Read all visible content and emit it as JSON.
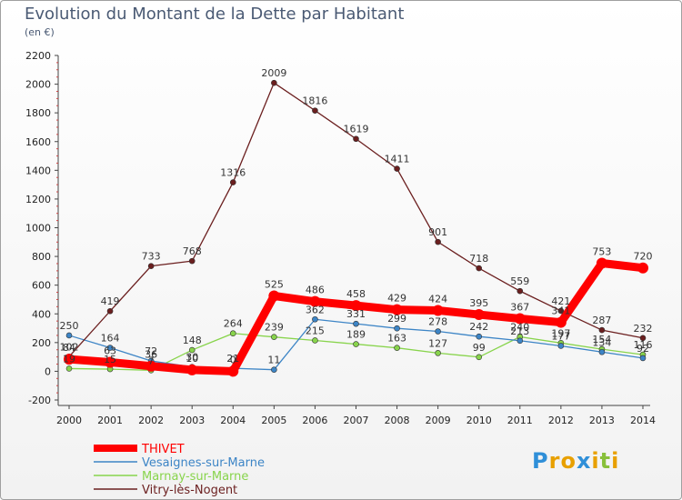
{
  "title": "Evolution du Montant de la Dette par Habitant",
  "subtitle": "(en €)",
  "logo": "Proxiti",
  "chart_data": {
    "type": "line",
    "title": "Evolution du Montant de la Dette par Habitant",
    "ylabel": "(en €)",
    "xlabel": "",
    "ylim": [
      -200,
      2200
    ],
    "yticks": [
      -200,
      0,
      200,
      400,
      600,
      800,
      1000,
      1200,
      1400,
      1600,
      1800,
      2000,
      2200
    ],
    "categories": [
      "2000",
      "2001",
      "2002",
      "2003",
      "2004",
      "2005",
      "2006",
      "2007",
      "2008",
      "2009",
      "2010",
      "2011",
      "2012",
      "2013",
      "2014"
    ],
    "grid": false,
    "legend_position": "bottom-left",
    "series": [
      {
        "name": "THIVET",
        "color": "#ff0000",
        "values": [
          84,
          63,
          36,
          10,
          0,
          525,
          486,
          458,
          429,
          424,
          395,
          367,
          341,
          753,
          720
        ],
        "labels": [
          "84",
          "63",
          "36",
          "10",
          "0",
          "525",
          "486",
          "458",
          "429",
          "424",
          "395",
          "367",
          "341",
          "753",
          "720"
        ]
      },
      {
        "name": "Vesaignes-sur-Marne",
        "color": "#3d85c6",
        "values": [
          250,
          164,
          72,
          30,
          21,
          11,
          362,
          331,
          299,
          278,
          242,
          213,
          177,
          134,
          92
        ],
        "labels": [
          "250",
          "164",
          "72",
          "30",
          "21",
          "11",
          "362",
          "331",
          "299",
          "278",
          "242",
          "213",
          "177",
          "134",
          "92"
        ]
      },
      {
        "name": "Marnay-sur-Marne",
        "color": "#88d44c",
        "values": [
          19,
          15,
          7,
          148,
          264,
          239,
          215,
          189,
          163,
          127,
          99,
          240,
          197,
          154,
          116
        ],
        "labels": [
          "19",
          "15",
          "7",
          "148",
          "264",
          "239",
          "215",
          "189",
          "163",
          "127",
          "99",
          "240",
          "197",
          "154",
          "116"
        ]
      },
      {
        "name": "Vitry-lès-Nogent",
        "color": "#6b1f1f",
        "values": [
          102,
          419,
          733,
          768,
          1316,
          2009,
          1816,
          1619,
          1411,
          901,
          718,
          559,
          421,
          287,
          232
        ],
        "labels": [
          "102",
          "419",
          "733",
          "768",
          "1316",
          "2009",
          "1816",
          "1619",
          "1411",
          "901",
          "718",
          "559",
          "421",
          "287",
          "232"
        ]
      }
    ]
  }
}
